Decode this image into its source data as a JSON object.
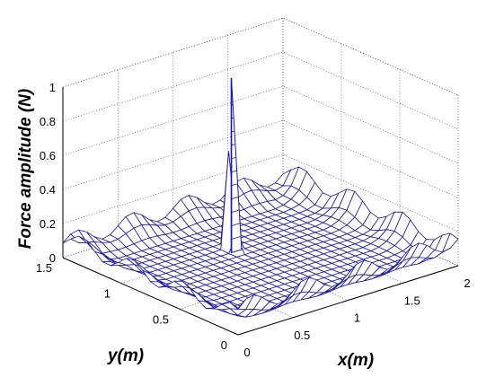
{
  "chart_data": {
    "type": "surface",
    "title": "",
    "xlabel": "x(m)",
    "ylabel": "y(m)",
    "zlabel": "Force amplitude (N)",
    "xlim": [
      0,
      2
    ],
    "ylim": [
      0,
      1.5
    ],
    "zlim": [
      0,
      1
    ],
    "x_ticks": [
      "0",
      "0.5",
      "1",
      "1.5",
      "2"
    ],
    "y_ticks": [
      "0",
      "0.5",
      "1",
      "1.5"
    ],
    "z_ticks": [
      "0",
      "0.2",
      "0.4",
      "0.6",
      "0.8",
      "1"
    ],
    "grid": true,
    "mesh": {
      "nx": 29,
      "ny": 23
    },
    "peak": {
      "x": 1.0,
      "y": 1.0,
      "z": 1.0
    },
    "edge_ripple_max": 0.22,
    "colors": {
      "mesh": "#1a1aa8",
      "grid": "#555555",
      "box": "#000000"
    }
  }
}
